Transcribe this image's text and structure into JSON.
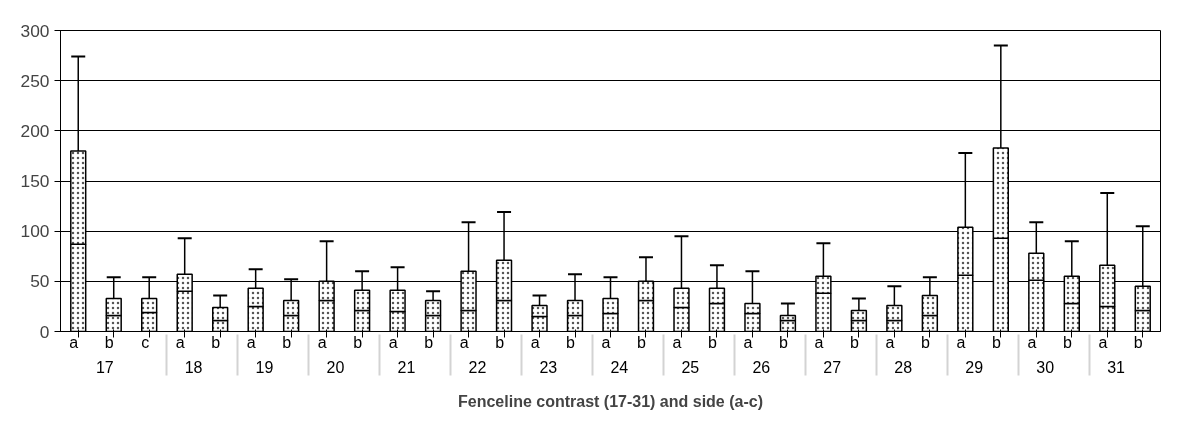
{
  "chart_data": {
    "type": "bar",
    "stacked": true,
    "xlabel": "Fenceline contrast (17-31) and side (a-c)",
    "categories": [
      "a",
      "b",
      "c",
      "a",
      "b",
      "a",
      "b",
      "a",
      "b",
      "a",
      "b",
      "a",
      "b",
      "a",
      "b",
      "a",
      "b",
      "a",
      "b",
      "a",
      "b",
      "a",
      "b",
      "a",
      "b",
      "a",
      "b",
      "a",
      "b",
      "a",
      "b"
    ],
    "annotations": [
      "17",
      "18",
      "19",
      "20",
      "21",
      "22",
      "23",
      "24",
      "25",
      "26",
      "27",
      "28",
      "29",
      "30",
      "31"
    ],
    "series": [
      {
        "color": "#ffffff",
        "values": [
          87,
          16,
          19,
          40,
          11,
          25,
          16,
          31,
          21,
          20,
          16,
          21,
          31,
          15,
          16,
          18,
          31,
          24,
          28,
          18,
          11,
          38,
          11,
          11,
          16,
          56,
          93,
          51,
          28,
          25,
          21
        ]
      },
      {
        "color": "#ffffff",
        "values": [
          93,
          17,
          14,
          17,
          13,
          18,
          15,
          19,
          20,
          21,
          15,
          39,
          40,
          11,
          15,
          15,
          19,
          19,
          15,
          10,
          5,
          17,
          10,
          15,
          20,
          48,
          90,
          27,
          27,
          41,
          24
        ],
        "errors": [
          [
            87,
            274
          ],
          [
            16,
            54
          ],
          [
            19,
            54
          ],
          [
            40,
            93
          ],
          [
            11,
            36
          ],
          [
            25,
            62
          ],
          [
            16,
            52
          ],
          [
            31,
            90
          ],
          [
            21,
            60
          ],
          [
            20,
            64
          ],
          [
            16,
            40
          ],
          [
            21,
            109
          ],
          [
            31,
            119
          ],
          [
            15,
            36
          ],
          [
            16,
            57
          ],
          [
            18,
            54
          ],
          [
            31,
            74
          ],
          [
            24,
            95
          ],
          [
            28,
            66
          ],
          [
            18,
            60
          ],
          [
            11,
            28
          ],
          [
            38,
            88
          ],
          [
            11,
            33
          ],
          [
            11,
            45
          ],
          [
            16,
            54
          ],
          [
            56,
            178
          ],
          [
            93,
            285
          ],
          [
            51,
            109
          ],
          [
            28,
            90
          ],
          [
            25,
            138
          ],
          [
            21,
            105
          ]
        ]
      }
    ],
    "ylim": [
      0,
      300
    ],
    "yticks": [
      0,
      50,
      100,
      150,
      200,
      250,
      300
    ],
    "grid": "y"
  }
}
